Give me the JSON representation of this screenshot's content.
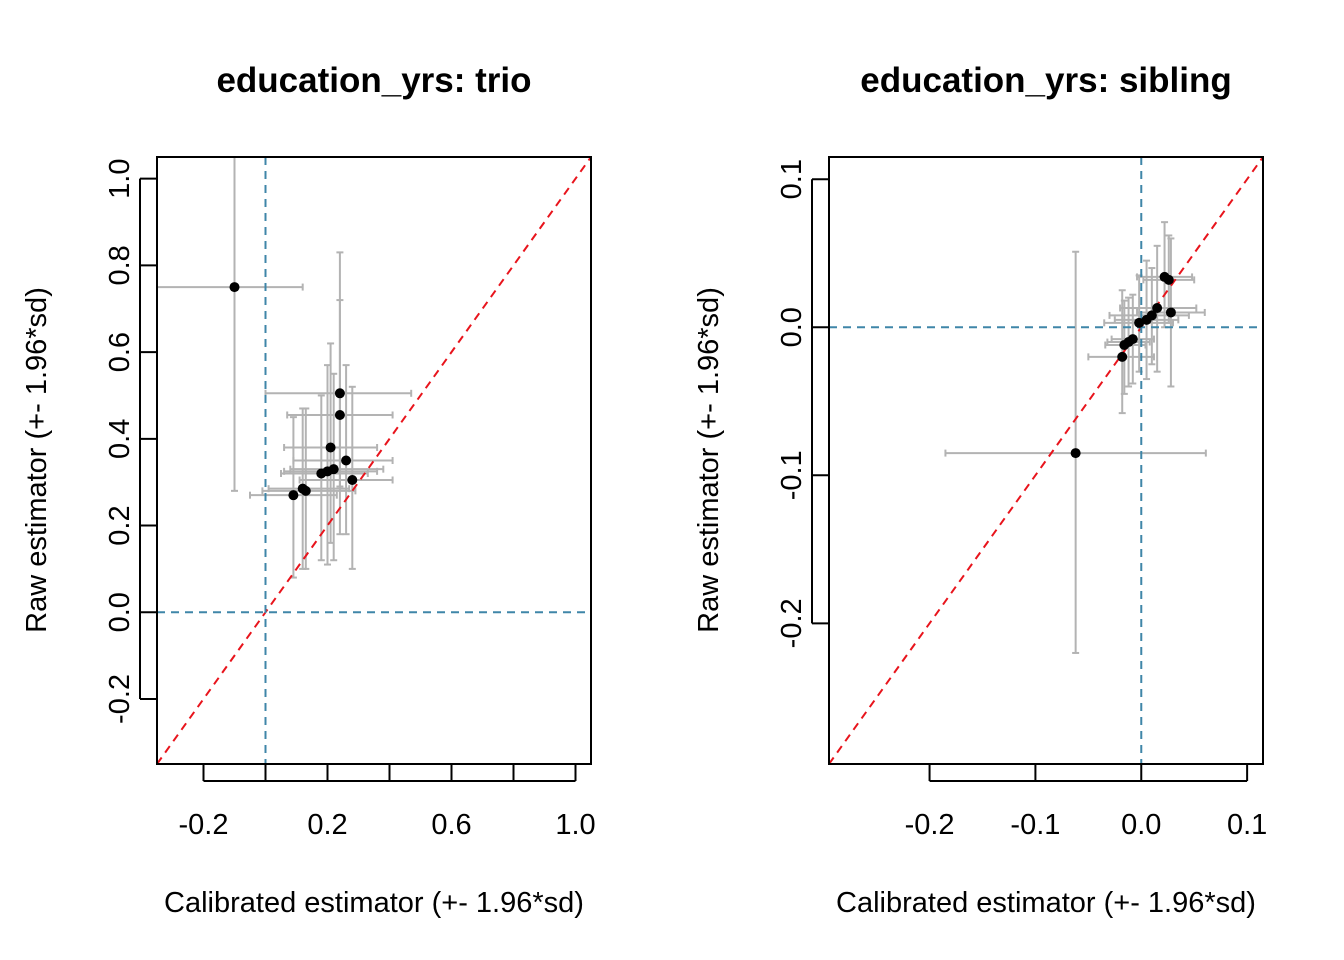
{
  "chart_data": [
    {
      "type": "scatter",
      "title": "education_yrs: trio",
      "xlabel": "Calibrated estimator (+- 1.96*sd)",
      "ylabel": "Raw estimator (+- 1.96*sd)",
      "xlim": [
        -0.35,
        1.05
      ],
      "ylim": [
        -0.35,
        1.05
      ],
      "xticks": [
        -0.2,
        0.2,
        0.6,
        1.0
      ],
      "xtick_labels": [
        "-0.2",
        "0.2",
        "0.6",
        "1.0"
      ],
      "xticks_unlabeled": [
        0.0,
        0.4,
        0.8
      ],
      "yticks": [
        -0.2,
        0.0,
        0.2,
        0.4,
        0.6,
        0.8,
        1.0
      ],
      "ytick_labels": [
        "-0.2",
        "0.0",
        "0.2",
        "0.4",
        "0.6",
        "0.8",
        "1.0"
      ],
      "reference_lines": {
        "identity": "#E8141C",
        "zero": "#3F86A8"
      },
      "colors": {
        "point": "#000000",
        "error_bar": "#B3B3B3"
      },
      "points": [
        {
          "x": -0.1,
          "y": 0.75,
          "xlo": -0.35,
          "xhi": 0.12,
          "ylo": 0.28,
          "yhi": 1.1
        },
        {
          "x": 0.24,
          "y": 0.505,
          "xlo": 0.0,
          "xhi": 0.47,
          "ylo": 0.29,
          "yhi": 0.72
        },
        {
          "x": 0.24,
          "y": 0.455,
          "xlo": 0.07,
          "xhi": 0.41,
          "ylo": 0.18,
          "yhi": 0.83
        },
        {
          "x": 0.21,
          "y": 0.38,
          "xlo": 0.06,
          "xhi": 0.36,
          "ylo": 0.16,
          "yhi": 0.62
        },
        {
          "x": 0.26,
          "y": 0.35,
          "xlo": 0.09,
          "xhi": 0.41,
          "ylo": 0.18,
          "yhi": 0.57
        },
        {
          "x": 0.22,
          "y": 0.33,
          "xlo": 0.08,
          "xhi": 0.38,
          "ylo": 0.12,
          "yhi": 0.55
        },
        {
          "x": 0.2,
          "y": 0.325,
          "xlo": 0.06,
          "xhi": 0.36,
          "ylo": 0.11,
          "yhi": 0.57
        },
        {
          "x": 0.18,
          "y": 0.32,
          "xlo": 0.05,
          "xhi": 0.33,
          "ylo": 0.12,
          "yhi": 0.5
        },
        {
          "x": 0.28,
          "y": 0.305,
          "xlo": 0.11,
          "xhi": 0.41,
          "ylo": 0.1,
          "yhi": 0.52
        },
        {
          "x": 0.13,
          "y": 0.28,
          "xlo": -0.01,
          "xhi": 0.29,
          "ylo": 0.1,
          "yhi": 0.47
        },
        {
          "x": 0.12,
          "y": 0.285,
          "xlo": 0.01,
          "xhi": 0.27,
          "ylo": 0.1,
          "yhi": 0.47
        },
        {
          "x": 0.09,
          "y": 0.27,
          "xlo": -0.05,
          "xhi": 0.23,
          "ylo": 0.08,
          "yhi": 0.45
        }
      ]
    },
    {
      "type": "scatter",
      "title": "education_yrs: sibling",
      "xlabel": "Calibrated estimator (+- 1.96*sd)",
      "ylabel": "Raw estimator (+- 1.96*sd)",
      "xlim": [
        -0.295,
        0.115
      ],
      "ylim": [
        -0.295,
        0.115
      ],
      "xticks": [
        -0.2,
        -0.1,
        0.0,
        0.1
      ],
      "xtick_labels": [
        "-0.2",
        "-0.1",
        "0.0",
        "0.1"
      ],
      "xticks_unlabeled": [],
      "yticks": [
        -0.2,
        -0.1,
        0.0,
        0.1
      ],
      "ytick_labels": [
        "-0.2",
        "-0.1",
        "0.0",
        "0.1"
      ],
      "reference_lines": {
        "identity": "#E8141C",
        "zero": "#3F86A8"
      },
      "colors": {
        "point": "#000000",
        "error_bar": "#B3B3B3"
      },
      "points": [
        {
          "x": -0.062,
          "y": -0.085,
          "xlo": -0.185,
          "xhi": 0.061,
          "ylo": -0.22,
          "yhi": 0.051
        },
        {
          "x": 0.022,
          "y": 0.034,
          "xlo": -0.004,
          "xhi": 0.048,
          "ylo": 0.0,
          "yhi": 0.071
        },
        {
          "x": 0.026,
          "y": 0.032,
          "xlo": 0.002,
          "xhi": 0.05,
          "ylo": 0.003,
          "yhi": 0.062
        },
        {
          "x": 0.028,
          "y": 0.01,
          "xlo": -0.004,
          "xhi": 0.06,
          "ylo": -0.04,
          "yhi": 0.06
        },
        {
          "x": 0.015,
          "y": 0.013,
          "xlo": -0.02,
          "xhi": 0.052,
          "ylo": -0.03,
          "yhi": 0.055
        },
        {
          "x": 0.01,
          "y": 0.008,
          "xlo": -0.03,
          "xhi": 0.045,
          "ylo": -0.025,
          "yhi": 0.04
        },
        {
          "x": 0.005,
          "y": 0.005,
          "xlo": -0.025,
          "xhi": 0.035,
          "ylo": -0.035,
          "yhi": 0.045
        },
        {
          "x": -0.002,
          "y": 0.003,
          "xlo": -0.035,
          "xhi": 0.03,
          "ylo": -0.03,
          "yhi": 0.035
        },
        {
          "x": -0.008,
          "y": -0.008,
          "xlo": -0.028,
          "xhi": 0.012,
          "ylo": -0.038,
          "yhi": 0.022
        },
        {
          "x": -0.012,
          "y": -0.01,
          "xlo": -0.032,
          "xhi": 0.008,
          "ylo": -0.04,
          "yhi": 0.02
        },
        {
          "x": -0.016,
          "y": -0.012,
          "xlo": -0.034,
          "xhi": 0.004,
          "ylo": -0.045,
          "yhi": 0.018
        },
        {
          "x": -0.018,
          "y": -0.02,
          "xlo": -0.05,
          "xhi": 0.012,
          "ylo": -0.058,
          "yhi": 0.025
        }
      ]
    }
  ]
}
